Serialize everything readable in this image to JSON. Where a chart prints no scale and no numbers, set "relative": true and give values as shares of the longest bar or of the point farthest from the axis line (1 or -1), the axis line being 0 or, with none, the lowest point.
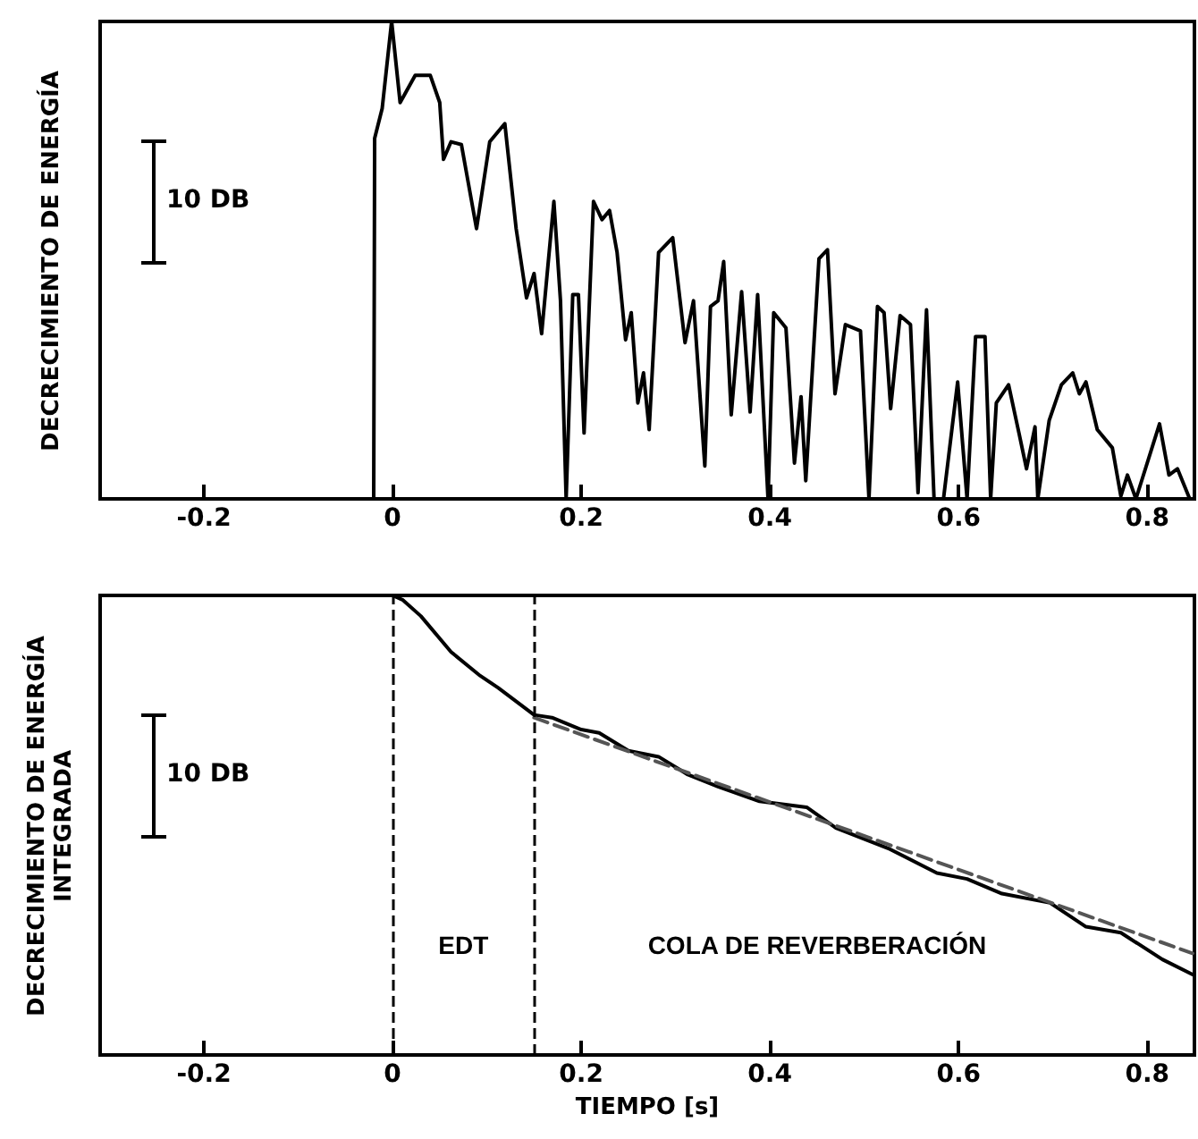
{
  "chart_data": [
    {
      "type": "line",
      "ylabel": "DECRECIMIENTO DE ENERGÍA",
      "relative": true,
      "xlim": [
        -0.31,
        0.85
      ],
      "xticks": [
        -0.2,
        0,
        0.2,
        0.4,
        0.6,
        0.8
      ],
      "grid": false,
      "marker": "none",
      "line_style": "solid",
      "annotations": [
        "10 DB"
      ],
      "series": [
        {
          "color": "#000000",
          "x": [
            -0.02,
            -0.019,
            -0.011,
            -0.001,
            0.008,
            0.024,
            0.04,
            0.05,
            0.054,
            0.062,
            0.073,
            0.089,
            0.103,
            0.119,
            0.131,
            0.142,
            0.15,
            0.158,
            0.171,
            0.178,
            0.184,
            0.191,
            0.197,
            0.203,
            0.213,
            0.222,
            0.23,
            0.238,
            0.247,
            0.253,
            0.26,
            0.266,
            0.272,
            0.282,
            0.297,
            0.31,
            0.319,
            0.331,
            0.337,
            0.345,
            0.351,
            0.359,
            0.37,
            0.379,
            0.387,
            0.398,
            0.404,
            0.417,
            0.426,
            0.433,
            0.438,
            0.445,
            0.452,
            0.461,
            0.469,
            0.48,
            0.496,
            0.505,
            0.514,
            0.521,
            0.528,
            0.538,
            0.549,
            0.557,
            0.566,
            0.574,
            0.584,
            0.599,
            0.609,
            0.618,
            0.628,
            0.634,
            0.64,
            0.653,
            0.664,
            0.672,
            0.681,
            0.684,
            0.696,
            0.709,
            0.721,
            0.728,
            0.735,
            0.747,
            0.763,
            0.772,
            0.779,
            0.788,
            0.813,
            0.823,
            0.832,
            0.845
          ],
          "values": [
            0,
            0.755,
            0.818,
            1,
            0.83,
            0.887,
            0.887,
            0.83,
            0.711,
            0.748,
            0.742,
            0.566,
            0.748,
            0.786,
            0.566,
            0.421,
            0.472,
            0.346,
            0.623,
            0.415,
            0,
            0.428,
            0.428,
            0.138,
            0.623,
            0.585,
            0.604,
            0.516,
            0.333,
            0.39,
            0.201,
            0.264,
            0.145,
            0.516,
            0.547,
            0.327,
            0.415,
            0.069,
            0.403,
            0.415,
            0.497,
            0.176,
            0.434,
            0.182,
            0.428,
            0,
            0.39,
            0.358,
            0.075,
            0.214,
            0.038,
            0.27,
            0.503,
            0.522,
            0.22,
            0.365,
            0.352,
            0,
            0.403,
            0.39,
            0.189,
            0.384,
            0.365,
            0.013,
            0.396,
            0,
            0,
            0.245,
            0,
            0.34,
            0.34,
            0,
            0.201,
            0.239,
            0.138,
            0.063,
            0.151,
            0,
            0.164,
            0.239,
            0.264,
            0.22,
            0.245,
            0.145,
            0.107,
            0.006,
            0.05,
            0,
            0.157,
            0.05,
            0.063,
            0
          ]
        }
      ]
    },
    {
      "type": "line",
      "ylabel": "DECRECIMIENTO DE ENERGÍA INTEGRADA",
      "xlabel": "TIEMPO [s]",
      "relative": true,
      "xlim": [
        -0.31,
        0.85
      ],
      "xticks": [
        -0.2,
        0,
        0.2,
        0.4,
        0.6,
        0.8
      ],
      "grid": false,
      "marker": "none",
      "line_style": "solid",
      "annotations": [
        "10 DB",
        "EDT",
        "COLA DE REVERBERACIÓN"
      ],
      "ref_lines": [
        {
          "axis": "x",
          "value": 0,
          "line_style": "dashed",
          "color": "#000000"
        },
        {
          "axis": "x",
          "value": 0.15,
          "line_style": "dashed",
          "color": "#000000"
        }
      ],
      "series": [
        {
          "color": "#000000",
          "x": [
            0,
            0.011,
            0.03,
            0.062,
            0.093,
            0.112,
            0.15,
            0.169,
            0.2,
            0.219,
            0.25,
            0.282,
            0.313,
            0.345,
            0.389,
            0.439,
            0.47,
            0.527,
            0.577,
            0.609,
            0.646,
            0.697,
            0.735,
            0.772,
            0.816,
            0.848
          ],
          "values": [
            1,
            0.99,
            0.955,
            0.877,
            0.825,
            0.799,
            0.74,
            0.734,
            0.708,
            0.701,
            0.662,
            0.649,
            0.61,
            0.584,
            0.552,
            0.539,
            0.494,
            0.448,
            0.396,
            0.383,
            0.351,
            0.331,
            0.279,
            0.266,
            0.208,
            0.175
          ]
        },
        {
          "color": "#555555",
          "line_style": "dashed",
          "x": [
            0.15,
            0.848
          ],
          "values": [
            0.734,
            0.221
          ]
        }
      ]
    }
  ]
}
